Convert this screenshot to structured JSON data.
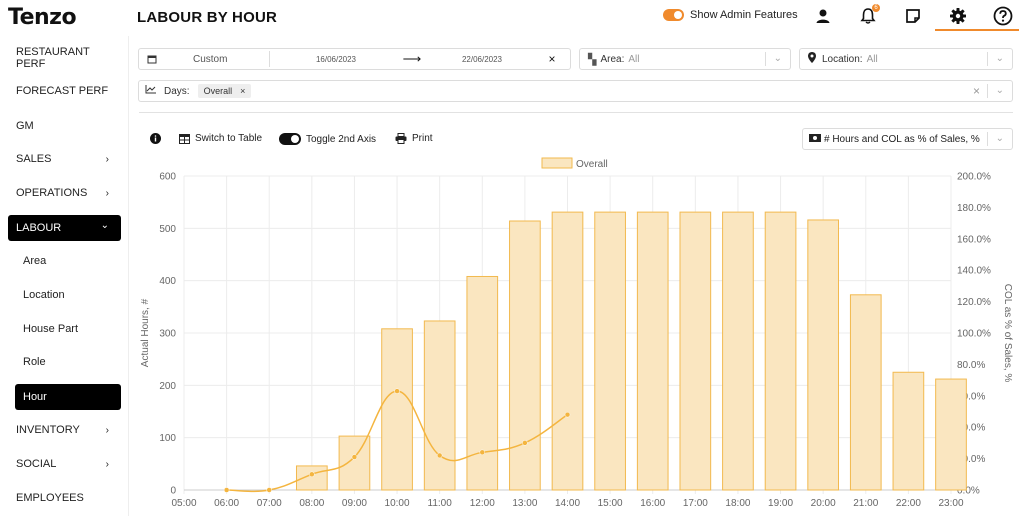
{
  "brand": {
    "logo_text": "Tenzo"
  },
  "header": {
    "title": "LABOUR BY HOUR",
    "admin_toggle_label": "Show Admin Features",
    "notification_count": "6"
  },
  "sidebar": {
    "items": [
      {
        "label": "RESTAURANT PERF"
      },
      {
        "label": "FORECAST PERF"
      },
      {
        "label": "GM"
      },
      {
        "label": "SALES",
        "chevron": "›"
      },
      {
        "label": "OPERATIONS",
        "chevron": "›"
      },
      {
        "label": "LABOUR",
        "chevron": "⌄"
      },
      {
        "label": "Area"
      },
      {
        "label": "Location"
      },
      {
        "label": "House Part"
      },
      {
        "label": "Role"
      },
      {
        "label": "Hour"
      },
      {
        "label": "INVENTORY",
        "chevron": "›"
      },
      {
        "label": "SOCIAL",
        "chevron": "›"
      },
      {
        "label": "EMPLOYEES"
      }
    ]
  },
  "filters": {
    "range_type": "Custom",
    "date_from": "16/06/2023",
    "date_to": "22/06/2023",
    "area_label": "Area:",
    "area_value": "All",
    "location_label": "Location:",
    "location_value": "All",
    "days_label": "Days:",
    "days_chip": "Overall"
  },
  "toolbar": {
    "switch_table": "Switch to Table",
    "toggle_axis": "Toggle 2nd Axis",
    "print": "Print",
    "metric_select": "# Hours and COL as % of Sales, %"
  },
  "colors": {
    "accent": "#f08a2c",
    "bar_fill": "#fae6c0",
    "bar_stroke": "#f2b94e",
    "line": "#f4b53f"
  },
  "chart_data": {
    "type": "bar",
    "title": "",
    "legend": [
      "Overall"
    ],
    "categories": [
      "05:00",
      "06:00",
      "07:00",
      "08:00",
      "09:00",
      "10:00",
      "11:00",
      "12:00",
      "13:00",
      "14:00",
      "15:00",
      "16:00",
      "17:00",
      "18:00",
      "19:00",
      "20:00",
      "21:00",
      "22:00",
      "23:00"
    ],
    "series": [
      {
        "name": "Overall",
        "axis": "left",
        "type": "bar",
        "values": [
          0,
          0,
          0,
          46,
          103,
          308,
          323,
          408,
          514,
          531,
          531,
          531,
          531,
          531,
          531,
          516,
          373,
          225,
          212
        ]
      },
      {
        "axis": "right",
        "type": "line",
        "values": [
          null,
          0.0,
          0.0,
          10.0,
          21.0,
          63.0,
          22.0,
          24.0,
          30.0,
          48.0,
          null,
          null,
          null,
          null,
          null,
          null,
          null,
          null,
          null
        ]
      }
    ],
    "ylabel": "Actual Hours, #",
    "y2label": "COL as % of Sales, %",
    "ylim": [
      0,
      600
    ],
    "y2lim": [
      0,
      200
    ],
    "yticks": [
      "0",
      "100",
      "200",
      "300",
      "400",
      "500",
      "600"
    ],
    "y2ticks": [
      "0.0%",
      "20.0%",
      "40.0%",
      "60.0%",
      "80.0%",
      "100.0%",
      "120.0%",
      "140.0%",
      "160.0%",
      "180.0%",
      "200.0%"
    ],
    "grid": true,
    "legend_position": "top-center"
  }
}
